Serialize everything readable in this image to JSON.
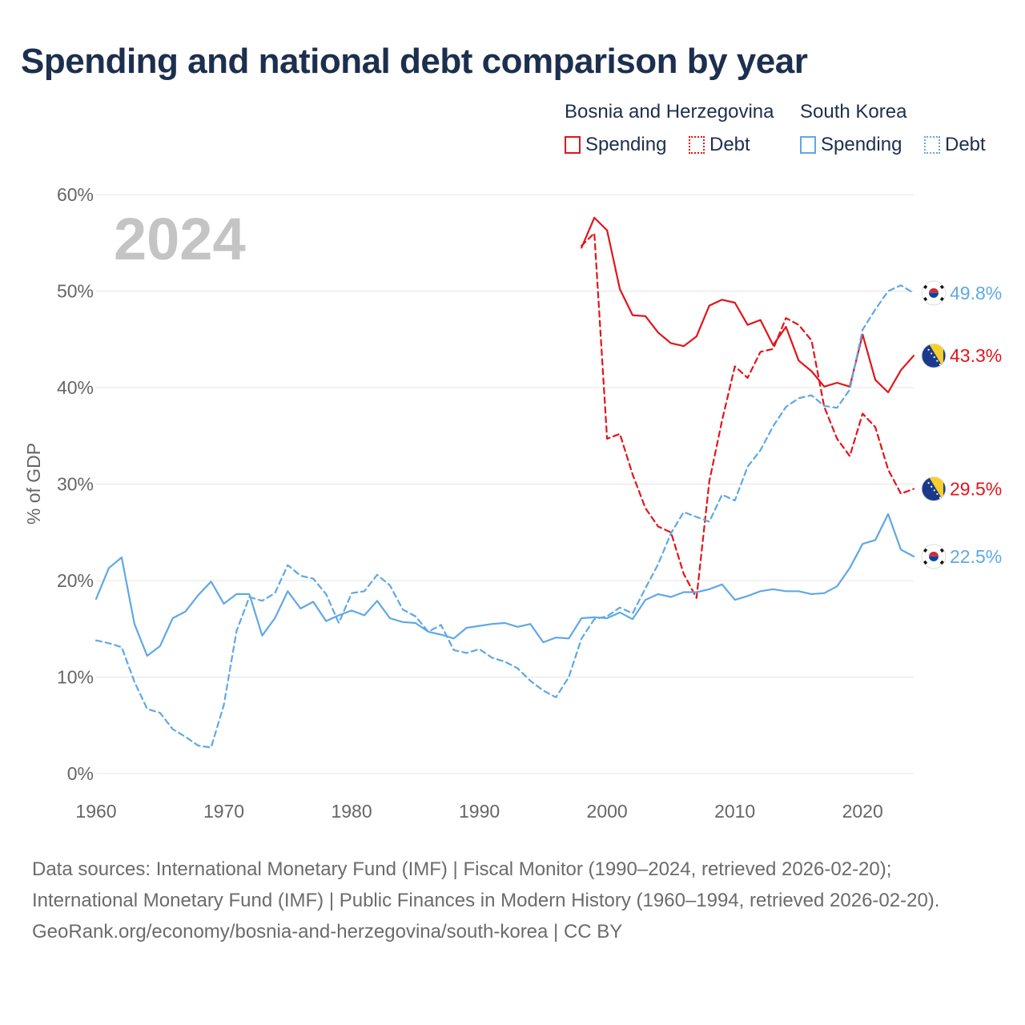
{
  "title": "Spending and national debt comparison by year",
  "legend": {
    "groups": [
      {
        "name": "Bosnia and Herzegovina",
        "color": "#e3141b",
        "items": [
          "Spending",
          "Debt"
        ]
      },
      {
        "name": "South Korea",
        "color": "#5fa8e6",
        "items": [
          "Spending",
          "Debt"
        ]
      }
    ]
  },
  "footer": {
    "sources": "Data sources: International Monetary Fund (IMF) | Fiscal Monitor (1990–2024, retrieved 2026-02-20); International Monetary Fund (IMF) | Public Finances in Modern History (1960–1994, retrieved 2026-02-20).",
    "credit": "GeoRank.org/economy/bosnia-and-herzegovina/south-korea | CC BY"
  },
  "chart_data": {
    "type": "line",
    "ylabel": "% of GDP",
    "xlim": [
      1960,
      2024
    ],
    "ylim": [
      0,
      60
    ],
    "xticks": [
      1960,
      1970,
      1980,
      1990,
      2000,
      2010,
      2020
    ],
    "xtick_labels": [
      "1960",
      "1970",
      "1980",
      "1990",
      "2000",
      "2010",
      "2020"
    ],
    "yticks": [
      0,
      10,
      20,
      30,
      40,
      50,
      60
    ],
    "ytick_labels": [
      "0%",
      "10%",
      "20%",
      "30%",
      "40%",
      "50%",
      "60%"
    ],
    "year_label": "2024",
    "series": [
      {
        "name": "Bosnia and Herzegovina Spending",
        "country": "Bosnia and Herzegovina",
        "metric": "Spending",
        "style": "solid",
        "color": "#e3141b",
        "flag": "ba",
        "end_label": "43.3%",
        "x": [
          1998,
          1999,
          2000,
          2001,
          2002,
          2003,
          2004,
          2005,
          2006,
          2007,
          2008,
          2009,
          2010,
          2011,
          2012,
          2013,
          2014,
          2015,
          2016,
          2017,
          2018,
          2019,
          2020,
          2021,
          2022,
          2023,
          2024
        ],
        "y": [
          54.5,
          57.6,
          56.3,
          50.2,
          47.5,
          47.4,
          45.7,
          44.6,
          44.3,
          45.3,
          48.5,
          49.1,
          48.8,
          46.5,
          47.0,
          44.4,
          46.3,
          42.8,
          41.7,
          40.1,
          40.5,
          40.1,
          45.5,
          40.8,
          39.5,
          41.8,
          43.3
        ]
      },
      {
        "name": "Bosnia and Herzegovina Debt",
        "country": "Bosnia and Herzegovina",
        "metric": "Debt",
        "style": "dashed",
        "color": "#e3141b",
        "flag": "ba",
        "end_label": "29.5%",
        "x": [
          1998,
          1999,
          2000,
          2001,
          2002,
          2003,
          2004,
          2005,
          2006,
          2007,
          2008,
          2009,
          2010,
          2011,
          2012,
          2013,
          2014,
          2015,
          2016,
          2017,
          2018,
          2019,
          2020,
          2021,
          2022,
          2023,
          2024
        ],
        "y": [
          54.7,
          56.0,
          34.7,
          35.2,
          31.0,
          27.5,
          25.6,
          25.0,
          20.7,
          18.2,
          30.3,
          36.6,
          42.2,
          41.0,
          43.7,
          44.0,
          47.2,
          46.5,
          44.9,
          38.0,
          34.7,
          32.9,
          37.3,
          35.9,
          31.5,
          29.0,
          29.5
        ]
      },
      {
        "name": "South Korea Spending",
        "country": "South Korea",
        "metric": "Spending",
        "style": "solid",
        "color": "#5fa8e6",
        "flag": "kr",
        "end_label": "22.5%",
        "x": [
          1960,
          1961,
          1962,
          1963,
          1964,
          1965,
          1966,
          1967,
          1968,
          1969,
          1970,
          1971,
          1972,
          1973,
          1974,
          1975,
          1976,
          1977,
          1978,
          1979,
          1980,
          1981,
          1982,
          1983,
          1984,
          1985,
          1986,
          1987,
          1988,
          1989,
          1990,
          1991,
          1992,
          1993,
          1994,
          1995,
          1996,
          1997,
          1998,
          1999,
          2000,
          2001,
          2002,
          2003,
          2004,
          2005,
          2006,
          2007,
          2008,
          2009,
          2010,
          2011,
          2012,
          2013,
          2014,
          2015,
          2016,
          2017,
          2018,
          2019,
          2020,
          2021,
          2022,
          2023,
          2024
        ],
        "y": [
          18.1,
          21.3,
          22.4,
          15.5,
          12.2,
          13.2,
          16.1,
          16.8,
          18.5,
          19.9,
          17.6,
          18.6,
          18.6,
          14.3,
          16.1,
          18.9,
          17.1,
          17.8,
          15.8,
          16.4,
          16.9,
          16.4,
          17.9,
          16.1,
          15.7,
          15.6,
          14.7,
          14.4,
          14.0,
          15.1,
          15.3,
          15.5,
          15.6,
          15.2,
          15.5,
          13.6,
          14.1,
          14.0,
          16.1,
          16.2,
          16.1,
          16.7,
          16.0,
          18.0,
          18.6,
          18.3,
          18.8,
          18.8,
          19.1,
          19.6,
          18.0,
          18.4,
          18.9,
          19.1,
          18.9,
          18.9,
          18.6,
          18.7,
          19.4,
          21.3,
          23.8,
          24.2,
          26.9,
          23.2,
          22.5
        ]
      },
      {
        "name": "South Korea Debt",
        "country": "South Korea",
        "metric": "Debt",
        "style": "dashed",
        "color": "#5fa8e6",
        "flag": "kr",
        "end_label": "49.8%",
        "x": [
          1960,
          1961,
          1962,
          1963,
          1964,
          1965,
          1966,
          1967,
          1968,
          1969,
          1970,
          1971,
          1972,
          1973,
          1974,
          1975,
          1976,
          1977,
          1978,
          1979,
          1980,
          1981,
          1982,
          1983,
          1984,
          1985,
          1986,
          1987,
          1988,
          1989,
          1990,
          1991,
          1992,
          1993,
          1994,
          1995,
          1996,
          1997,
          1998,
          1999,
          2000,
          2001,
          2002,
          2003,
          2004,
          2005,
          2006,
          2007,
          2008,
          2009,
          2010,
          2011,
          2012,
          2013,
          2014,
          2015,
          2016,
          2017,
          2018,
          2019,
          2020,
          2021,
          2022,
          2023,
          2024
        ],
        "y": [
          13.8,
          13.5,
          13.1,
          9.5,
          6.7,
          6.3,
          4.6,
          3.8,
          2.9,
          2.7,
          7.1,
          14.8,
          18.3,
          17.9,
          18.7,
          21.6,
          20.5,
          20.2,
          18.6,
          15.6,
          18.7,
          18.9,
          20.6,
          19.5,
          17.0,
          16.3,
          14.7,
          15.4,
          12.8,
          12.5,
          12.9,
          12.0,
          11.6,
          10.9,
          9.6,
          8.6,
          7.9,
          10.0,
          14.0,
          16.0,
          16.3,
          17.2,
          16.6,
          19.2,
          21.7,
          24.9,
          27.1,
          26.6,
          26.1,
          28.9,
          28.3,
          31.8,
          33.5,
          36.0,
          38.0,
          38.9,
          39.2,
          38.1,
          37.9,
          39.8,
          46.0,
          48.1,
          50.0,
          50.6,
          49.8
        ]
      }
    ]
  }
}
